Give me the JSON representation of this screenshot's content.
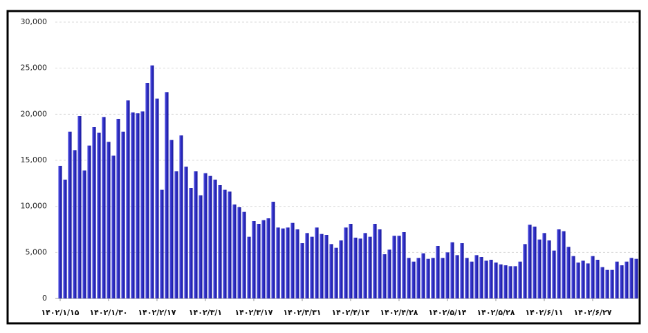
{
  "chart_data": {
    "type": "bar",
    "categories": [
      "۱۴۰۲/۱/۱۵",
      null,
      null,
      null,
      null,
      null,
      null,
      null,
      null,
      null,
      "۱۴۰۲/۱/۳۰",
      null,
      null,
      null,
      null,
      null,
      null,
      null,
      null,
      null,
      "۱۴۰۲/۲/۱۷",
      null,
      null,
      null,
      null,
      null,
      null,
      null,
      null,
      null,
      "۱۴۰۲/۳/۱",
      null,
      null,
      null,
      null,
      null,
      null,
      null,
      null,
      null,
      "۱۴۰۲/۳/۱۷",
      null,
      null,
      null,
      null,
      null,
      null,
      null,
      null,
      null,
      "۱۴۰۲/۳/۳۱",
      null,
      null,
      null,
      null,
      null,
      null,
      null,
      null,
      null,
      "۱۴۰۲/۴/۱۴",
      null,
      null,
      null,
      null,
      null,
      null,
      null,
      null,
      null,
      "۱۴۰۲/۴/۲۸",
      null,
      null,
      null,
      null,
      null,
      null,
      null,
      null,
      null,
      "۱۴۰۲/۵/۱۴",
      null,
      null,
      null,
      null,
      null,
      null,
      null,
      null,
      null,
      "۱۴۰۲/۵/۲۸",
      null,
      null,
      null,
      null,
      null,
      null,
      null,
      null,
      null,
      "۱۴۰۲/۶/۱۱",
      null,
      null,
      null,
      null,
      null,
      null,
      null,
      null,
      null,
      "۱۴۰۲/۶/۲۷",
      null,
      null,
      null,
      null,
      null,
      null,
      null,
      null,
      null
    ],
    "values": [
      14400,
      12900,
      18100,
      16100,
      19800,
      13900,
      16600,
      18600,
      18000,
      19700,
      17000,
      15500,
      19500,
      18100,
      21500,
      20200,
      20100,
      20300,
      23400,
      25300,
      21700,
      11800,
      22400,
      17200,
      13800,
      17700,
      14300,
      12000,
      13800,
      11200,
      13600,
      13300,
      12900,
      12300,
      11800,
      11600,
      10200,
      9900,
      9400,
      6700,
      8400,
      8100,
      8500,
      8700,
      10500,
      7700,
      7600,
      7700,
      8200,
      7500,
      6000,
      7100,
      6700,
      7700,
      7000,
      6900,
      5900,
      5500,
      6300,
      7700,
      8100,
      6600,
      6500,
      7100,
      6700,
      8100,
      7500,
      4800,
      5300,
      6800,
      6800,
      7200,
      4400,
      4000,
      4400,
      4900,
      4300,
      4400,
      5700,
      4400,
      5000,
      6100,
      4700,
      6000,
      4400,
      4000,
      4700,
      4500,
      4100,
      4200,
      3900,
      3700,
      3600,
      3500,
      3500,
      4000,
      5900,
      8000,
      7800,
      6400,
      7100,
      6300,
      5200,
      7500,
      7300,
      5600,
      4600,
      3900,
      4100,
      3800,
      4600,
      4200,
      3400,
      3100,
      3100,
      4000,
      3600,
      4000,
      4400,
      4300
    ],
    "color": "#3030c8",
    "ylim": [
      0,
      30000
    ],
    "yticks": [
      0,
      {
        "value": 5000,
        "label": "5,000"
      },
      {
        "value": 10000,
        "label": "10,000"
      },
      {
        "value": 15000,
        "label": "15,000"
      },
      {
        "value": 20000,
        "label": "20,000"
      },
      {
        "value": 25000,
        "label": "25,000"
      },
      {
        "value": 30000,
        "label": "30,000"
      }
    ],
    "grid": true
  }
}
